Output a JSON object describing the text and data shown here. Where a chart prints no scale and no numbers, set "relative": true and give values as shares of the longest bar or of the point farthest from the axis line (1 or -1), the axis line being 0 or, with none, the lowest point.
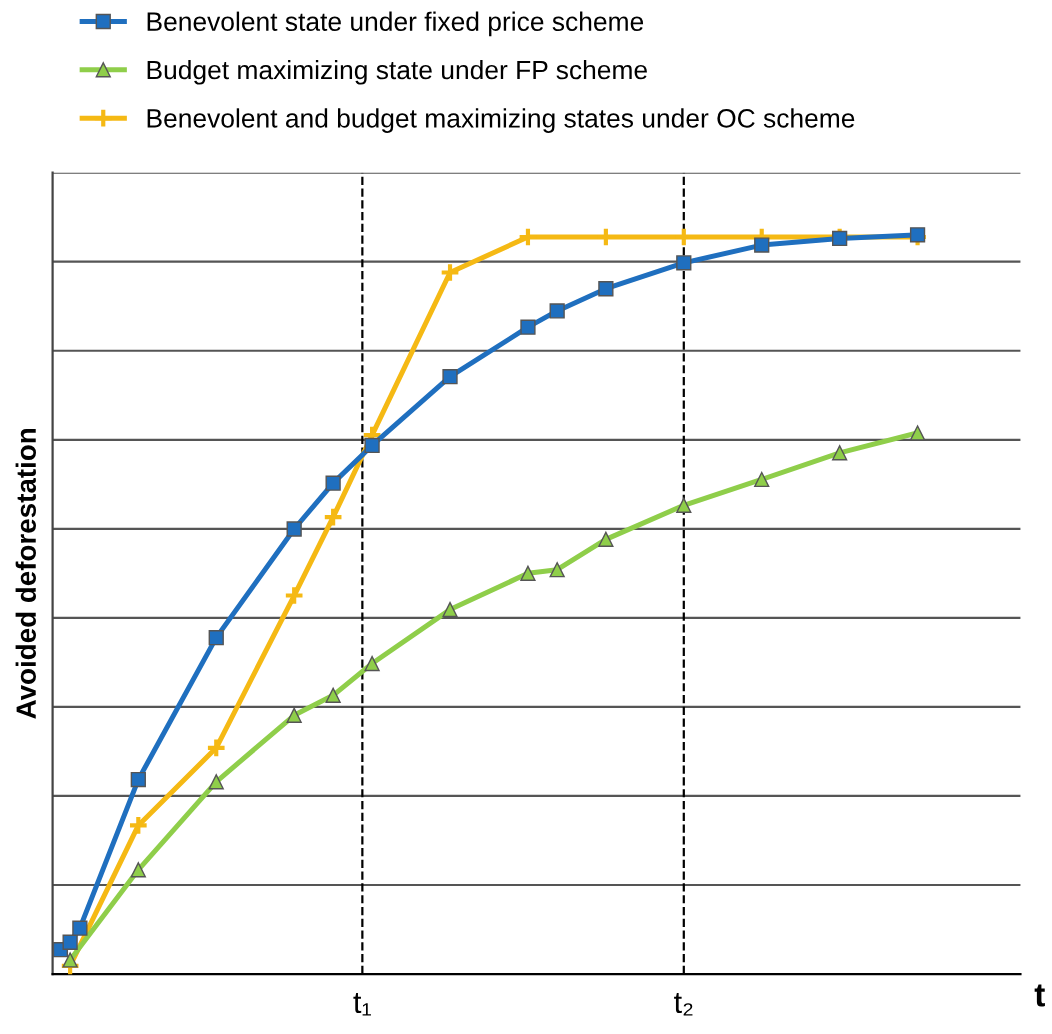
{
  "chart_data": {
    "type": "line",
    "relative": true,
    "xlabel": "t",
    "ylabel": "Avoided deforestation",
    "categories": [
      null,
      null,
      null,
      null,
      null,
      null,
      null,
      null,
      null,
      null,
      null,
      null,
      null,
      null,
      null,
      null,
      null,
      null,
      null,
      null,
      null,
      null,
      null,
      null,
      null,
      null,
      null,
      null,
      null,
      null,
      null,
      "t₁",
      null,
      null,
      null,
      null,
      null,
      null,
      null,
      null,
      null,
      null,
      null,
      null,
      null,
      null,
      null,
      null,
      null,
      null,
      null,
      null,
      null,
      null,
      null,
      null,
      null,
      null,
      null,
      null,
      null,
      null,
      null,
      null,
      "t₂",
      null,
      null,
      null,
      null,
      null,
      null,
      null,
      null,
      null,
      null,
      null,
      null,
      null,
      null,
      null,
      null,
      null,
      null,
      null,
      null,
      null,
      null,
      null,
      null
    ],
    "grid": "y",
    "legend": "top",
    "line_style": "solid",
    "ref_lines": [
      {
        "axis": "x",
        "value": "t₁",
        "line_style": "dashed",
        "color": "#000000"
      },
      {
        "axis": "x",
        "value": "t₂",
        "line_style": "dashed",
        "color": "#000000"
      }
    ],
    "series": [
      {
        "name": "Benevolent state under fixed price scheme",
        "color": "#1f6fbf",
        "marker": "square",
        "values": [
          0.033,
          0.043,
          0.062,
          null,
          null,
          null,
          null,
          null,
          0.263,
          null,
          null,
          null,
          null,
          null,
          null,
          null,
          0.455,
          null,
          null,
          null,
          null,
          null,
          null,
          null,
          0.602,
          null,
          null,
          null,
          0.664,
          null,
          null,
          null,
          0.715,
          null,
          null,
          null,
          null,
          null,
          null,
          null,
          0.808,
          null,
          null,
          null,
          null,
          null,
          null,
          null,
          0.875,
          null,
          null,
          0.897,
          null,
          null,
          null,
          null,
          0.927,
          null,
          null,
          null,
          null,
          null,
          null,
          null,
          0.962,
          null,
          null,
          null,
          null,
          null,
          null,
          null,
          0.986,
          null,
          null,
          null,
          null,
          null,
          null,
          null,
          0.995,
          null,
          null,
          null,
          null,
          null,
          null,
          null,
          1
        ]
      },
      {
        "name": "Budget maximizing state under FP scheme",
        "color": "#8fce4a",
        "marker": "triangle",
        "values": [
          null,
          0.019,
          null,
          null,
          null,
          null,
          null,
          null,
          0.141,
          null,
          null,
          null,
          null,
          null,
          null,
          null,
          0.26,
          null,
          null,
          null,
          null,
          null,
          null,
          null,
          0.35,
          null,
          null,
          null,
          0.377,
          null,
          null,
          null,
          0.42,
          null,
          null,
          null,
          null,
          null,
          null,
          null,
          0.493,
          null,
          null,
          null,
          null,
          null,
          null,
          null,
          0.542,
          null,
          null,
          0.547,
          null,
          null,
          null,
          null,
          0.588,
          null,
          null,
          null,
          null,
          null,
          null,
          null,
          0.634,
          null,
          null,
          null,
          null,
          null,
          null,
          null,
          0.669,
          null,
          null,
          null,
          null,
          null,
          null,
          null,
          0.705,
          null,
          null,
          null,
          null,
          null,
          null,
          null,
          0.732
        ]
      },
      {
        "name": "Benevolent and budget maximizing states under OC scheme",
        "color": "#f5b914",
        "marker": "cross",
        "values": [
          null,
          0.011,
          null,
          null,
          null,
          null,
          null,
          null,
          0.201,
          null,
          null,
          null,
          null,
          null,
          null,
          null,
          0.306,
          null,
          null,
          null,
          null,
          null,
          null,
          null,
          0.512,
          null,
          null,
          null,
          0.618,
          null,
          null,
          null,
          0.729,
          null,
          null,
          null,
          null,
          null,
          null,
          null,
          0.949,
          null,
          null,
          null,
          null,
          null,
          null,
          null,
          0.997,
          null,
          null,
          null,
          null,
          null,
          null,
          null,
          0.997,
          null,
          null,
          null,
          null,
          null,
          null,
          null,
          0.997,
          null,
          null,
          null,
          null,
          null,
          null,
          null,
          0.997,
          null,
          null,
          null,
          null,
          null,
          null,
          null,
          0.997,
          null,
          null,
          null,
          null,
          null,
          null,
          null,
          0.997
        ]
      }
    ]
  }
}
